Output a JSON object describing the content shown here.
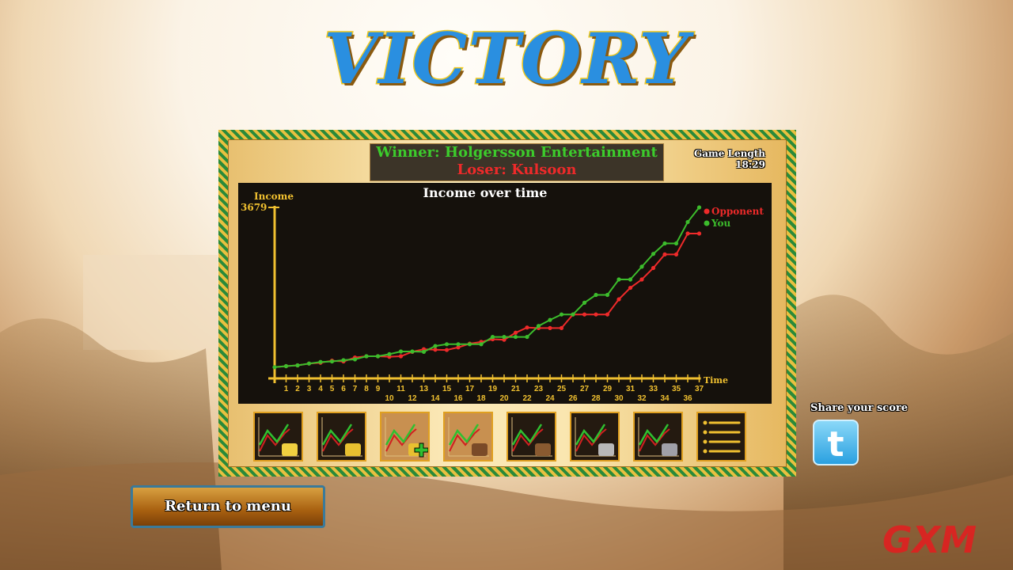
{
  "title": "VICTORY",
  "result": {
    "winner": "Winner: Holgersson Entertainment",
    "loser": "Loser: Kulsoon",
    "game_length_label": "Game Length",
    "game_length": "18:29"
  },
  "chart_data": {
    "type": "line",
    "title": "Income over time",
    "ylabel": "Income",
    "xlabel": "Time",
    "ylim": [
      0,
      3679
    ],
    "y_tick_labels": [
      "3679"
    ],
    "x": [
      0,
      1,
      2,
      3,
      4,
      5,
      6,
      7,
      8,
      9,
      10,
      11,
      12,
      13,
      14,
      15,
      16,
      17,
      18,
      19,
      20,
      21,
      22,
      23,
      24,
      25,
      26,
      27,
      28,
      29,
      30,
      31,
      32,
      33,
      34,
      35,
      36,
      37
    ],
    "x_tick_labels": [
      "1",
      "2",
      "3",
      "4",
      "5",
      "6",
      "7",
      "8",
      "9",
      "10",
      "11",
      "12",
      "13",
      "14",
      "15",
      "16",
      "17",
      "18",
      "19",
      "20",
      "21",
      "22",
      "23",
      "24",
      "25",
      "26",
      "27",
      "28",
      "29",
      "30",
      "31",
      "32",
      "33",
      "34",
      "35",
      "36",
      "37"
    ],
    "grid": false,
    "legend": "top-right",
    "series": [
      {
        "name": "Opponent",
        "color": "#ee2a2a",
        "values": [
          242,
          264,
          281,
          320,
          337,
          382,
          365,
          449,
          477,
          477,
          466,
          477,
          573,
          629,
          618,
          612,
          668,
          747,
          786,
          843,
          831,
          983,
          1095,
          1084,
          1084,
          1084,
          1376,
          1376,
          1376,
          1376,
          1702,
          1949,
          2129,
          2376,
          2668,
          2668,
          3117,
          3117
        ]
      },
      {
        "name": "You",
        "color": "#3cbc2c",
        "values": [
          242,
          264,
          281,
          320,
          354,
          365,
          393,
          410,
          477,
          477,
          522,
          579,
          579,
          573,
          697,
          736,
          736,
          736,
          736,
          893,
          893,
          893,
          893,
          1129,
          1258,
          1376,
          1376,
          1629,
          1797,
          1797,
          2129,
          2129,
          2404,
          2679,
          2904,
          2904,
          3365,
          3679
        ]
      }
    ]
  },
  "stat_tabs": [
    {
      "icon": "income-chart-icon"
    },
    {
      "icon": "gold-chart-icon"
    },
    {
      "icon": "gold-gained-chart-icon"
    },
    {
      "icon": "gold-spent-chart-icon"
    },
    {
      "icon": "wood-chart-icon"
    },
    {
      "icon": "stone-chart-icon"
    },
    {
      "icon": "iron-chart-icon"
    },
    {
      "icon": "summary-list-icon"
    }
  ],
  "return_button": "Return to menu",
  "share_label": "Share your score",
  "logo": "GXM"
}
